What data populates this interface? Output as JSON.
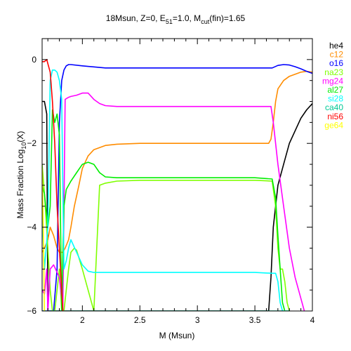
{
  "chart_data": {
    "type": "line",
    "title": {
      "prefix": "18Msun, Z=0, E",
      "sub1": "51",
      "mid": "=1.0, M",
      "sub2": "cut",
      "suffix": "(fin)=1.65"
    },
    "xlabel": "M (Msun)",
    "ylabel": {
      "prefix": "Mass Fraction Log",
      "sub": "10",
      "suffix": "(X)"
    },
    "xlim": [
      1.65,
      4.0
    ],
    "ylim": [
      -6,
      0.5
    ],
    "xticks": [
      2,
      2.5,
      3,
      3.5,
      4
    ],
    "xtick_labels": [
      "2",
      "2.5",
      "3",
      "3.5",
      "4"
    ],
    "yticks": [
      0,
      -2,
      -4,
      -6
    ],
    "ytick_labels": [
      "0",
      "−2",
      "−4",
      "−6"
    ],
    "legend_position": "right-outside",
    "series": [
      {
        "name": "he4",
        "color": "#000000",
        "x": [
          1.65,
          1.67,
          1.69,
          1.7,
          3.62,
          3.64,
          3.66,
          3.7,
          3.75,
          3.8,
          3.85,
          3.9,
          3.95,
          4.0
        ],
        "y": [
          -1.0,
          -1.0,
          -1.3,
          -6.0,
          -6.0,
          -5.2,
          -4.0,
          -3.0,
          -2.5,
          -2.0,
          -1.7,
          -1.4,
          -1.2,
          -1.05
        ]
      },
      {
        "name": "c12",
        "color": "#ff8c00",
        "x": [
          1.65,
          1.67,
          1.7,
          1.72,
          1.75,
          1.78,
          1.8,
          1.83,
          1.85,
          1.88,
          1.9,
          1.93,
          1.97,
          2.0,
          2.05,
          2.1,
          2.2,
          2.3,
          2.5,
          3.0,
          3.5,
          3.62,
          3.64,
          3.66,
          3.68,
          3.7,
          3.75,
          3.8,
          3.85,
          3.9,
          3.95,
          4.0
        ],
        "y": [
          -4.6,
          -4.5,
          -4.3,
          -4.0,
          -4.2,
          -4.5,
          -4.6,
          -4.6,
          -4.5,
          -4.3,
          -4.0,
          -3.5,
          -3.0,
          -2.6,
          -2.3,
          -2.15,
          -2.05,
          -2.02,
          -2.0,
          -2.0,
          -2.0,
          -2.0,
          -1.9,
          -1.5,
          -1.0,
          -0.7,
          -0.5,
          -0.4,
          -0.35,
          -0.3,
          -0.28,
          -0.3
        ]
      },
      {
        "name": "o16",
        "color": "#0000ff",
        "x": [
          1.65,
          1.7,
          1.75,
          1.78,
          1.8,
          1.82,
          1.84,
          1.86,
          1.88,
          1.9,
          2.0,
          2.2,
          2.5,
          3.0,
          3.5,
          3.65,
          3.7,
          3.75,
          3.8,
          3.85,
          3.9,
          3.95,
          4.0
        ],
        "y": [
          -6.0,
          -6.0,
          -6.0,
          -5.0,
          -1.5,
          -0.5,
          -0.25,
          -0.15,
          -0.12,
          -0.12,
          -0.15,
          -0.2,
          -0.2,
          -0.2,
          -0.2,
          -0.2,
          -0.14,
          -0.12,
          -0.13,
          -0.17,
          -0.22,
          -0.28,
          -0.33
        ]
      },
      {
        "name": "na23",
        "color": "#7fff00",
        "x": [
          1.65,
          1.67,
          1.7,
          1.72,
          1.74,
          1.76,
          1.78,
          1.8,
          1.82,
          1.84,
          1.86,
          1.88,
          1.9,
          1.93,
          1.95,
          2.0,
          2.05,
          2.1,
          2.15,
          2.2,
          2.3,
          2.5,
          3.0,
          3.5,
          3.65,
          3.68,
          3.7,
          3.72,
          3.74,
          3.76,
          3.78,
          3.8
        ],
        "y": [
          -2.5,
          -3.2,
          -4.5,
          -5.5,
          -6.0,
          -6.0,
          -5.5,
          -5.0,
          -6.0,
          -6.0,
          -5.5,
          -5.0,
          -4.6,
          -4.5,
          -4.55,
          -5.0,
          -5.5,
          -6.0,
          -3.0,
          -2.95,
          -2.9,
          -2.88,
          -2.88,
          -2.88,
          -2.9,
          -3.5,
          -4.5,
          -5.0,
          -5.0,
          -5.3,
          -5.8,
          -6.0
        ]
      },
      {
        "name": "mg24",
        "color": "#ff00ff",
        "x": [
          1.65,
          1.67,
          1.69,
          1.7,
          1.72,
          1.75,
          1.8,
          1.83,
          1.85,
          1.88,
          1.9,
          1.95,
          2.0,
          2.05,
          2.1,
          2.15,
          2.2,
          2.3,
          2.5,
          3.0,
          3.5,
          3.64,
          3.66,
          3.7,
          3.75,
          3.8,
          3.85,
          3.9,
          3.93
        ],
        "y": [
          -5.5,
          -5.6,
          -5.0,
          -6.0,
          -5.0,
          -4.9,
          -5.2,
          -6.0,
          -0.95,
          -0.9,
          -0.88,
          -0.85,
          -0.8,
          -0.8,
          -0.95,
          -1.05,
          -1.1,
          -1.12,
          -1.12,
          -1.12,
          -1.12,
          -1.12,
          -1.5,
          -2.5,
          -3.5,
          -4.5,
          -5.2,
          -5.7,
          -6.0
        ]
      },
      {
        "name": "al27",
        "color": "#00ee00",
        "x": [
          1.65,
          1.67,
          1.7,
          1.72,
          1.74,
          1.76,
          1.78,
          1.8,
          1.82,
          1.84,
          1.86,
          1.88,
          1.9,
          1.95,
          2.0,
          2.05,
          2.1,
          2.15,
          2.2,
          2.3,
          2.5,
          3.0,
          3.5,
          3.65,
          3.68,
          3.7,
          3.72,
          3.74,
          3.76,
          3.8
        ],
        "y": [
          -3.0,
          -3.2,
          -4.0,
          -3.5,
          -1.2,
          -1.5,
          -1.3,
          -1.8,
          -6.0,
          -3.5,
          -3.1,
          -3.0,
          -2.9,
          -2.7,
          -2.5,
          -2.45,
          -2.5,
          -2.7,
          -2.8,
          -2.82,
          -2.82,
          -2.82,
          -2.82,
          -2.85,
          -3.3,
          -4.2,
          -5.0,
          -5.8,
          -6.0,
          -6.0
        ]
      },
      {
        "name": "si28",
        "color": "#00ffff",
        "x": [
          1.65,
          1.67,
          1.7,
          1.72,
          1.74,
          1.76,
          1.78,
          1.8,
          1.82,
          1.84,
          1.86,
          1.88,
          1.9,
          1.95,
          2.0,
          2.05,
          2.1,
          2.15,
          2.2,
          2.3,
          2.5,
          3.0,
          3.5,
          3.65,
          3.68,
          3.7,
          3.72,
          3.74,
          3.76,
          3.8
        ],
        "y": [
          -3.7,
          -5.0,
          -4.0,
          -0.5,
          -0.25,
          -0.25,
          -0.3,
          -0.5,
          -0.95,
          -5.0,
          -4.8,
          -4.5,
          -4.3,
          -4.6,
          -4.9,
          -5.05,
          -5.08,
          -5.08,
          -5.08,
          -5.08,
          -5.08,
          -5.08,
          -5.08,
          -5.1,
          -5.1,
          -5.3,
          -5.8,
          -6.0,
          -6.0,
          -6.0
        ]
      },
      {
        "name": "ca40",
        "color": "#00c896",
        "x": [
          1.65,
          1.7,
          1.75,
          1.8,
          1.85,
          1.9,
          2.0,
          2.2,
          2.5,
          3.0,
          3.5,
          3.65,
          3.7,
          3.75
        ],
        "y": [
          -6.0,
          -6.0,
          -6.0,
          -6.0,
          -6.0,
          -6.0,
          -6.0,
          -6.0,
          -6.0,
          -6.0,
          -6.0,
          -6.0,
          -6.0,
          -6.0
        ]
      },
      {
        "name": "ni56",
        "color": "#ff0000",
        "x": [
          1.65,
          1.67,
          1.69,
          1.7,
          1.72,
          1.74,
          1.76,
          1.78,
          1.8,
          1.82,
          1.83
        ],
        "y": [
          -0.05,
          -0.05,
          0.0,
          -0.1,
          -0.3,
          -1.0,
          -2.0,
          -3.5,
          -4.5,
          -5.5,
          -6.0
        ]
      },
      {
        "name": "ge64",
        "color": "#ffff00",
        "x": [
          1.65,
          1.66,
          1.67
        ],
        "y": [
          -2.6,
          -4.0,
          -6.0
        ]
      }
    ]
  }
}
